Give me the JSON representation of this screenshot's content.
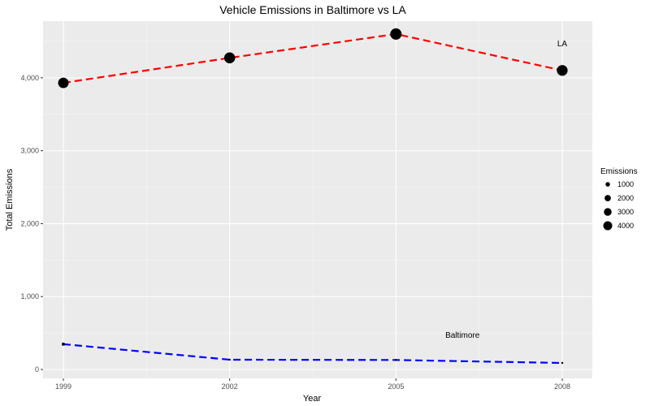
{
  "chart_data": {
    "type": "line",
    "title": "Vehicle Emissions in Baltimore vs LA",
    "xlabel": "Year",
    "ylabel": "Total Emissions",
    "x": [
      1999,
      2002,
      2005,
      2008
    ],
    "x_ticks": [
      "1999",
      "2002",
      "2005",
      "2008"
    ],
    "y_ticks": [
      "0",
      "1,000",
      "2,000",
      "3,000",
      "4,000"
    ],
    "y_tick_values": [
      0,
      1000,
      2000,
      3000,
      4000
    ],
    "xlim": [
      1999,
      2008
    ],
    "ylim": [
      0,
      4600
    ],
    "grid": true,
    "series": [
      {
        "name": "LA",
        "color": "#ff0000",
        "line_style": "dashed",
        "values": [
          3931,
          4274,
          4601,
          4102
        ]
      },
      {
        "name": "Baltimore",
        "color": "#0000ff",
        "line_style": "dashed",
        "values": [
          347,
          134,
          130,
          89
        ]
      }
    ],
    "annotations": [
      {
        "text": "LA",
        "x": 2008,
        "y": 4480
      },
      {
        "text": "Baltimore",
        "x": 2006.2,
        "y": 480
      }
    ],
    "legend": {
      "title": "Emissions",
      "placement": "right",
      "entries": [
        {
          "label": "1000",
          "value": 1000
        },
        {
          "label": "2000",
          "value": 2000
        },
        {
          "label": "3000",
          "value": 3000
        },
        {
          "label": "4000",
          "value": 4000
        }
      ]
    }
  }
}
